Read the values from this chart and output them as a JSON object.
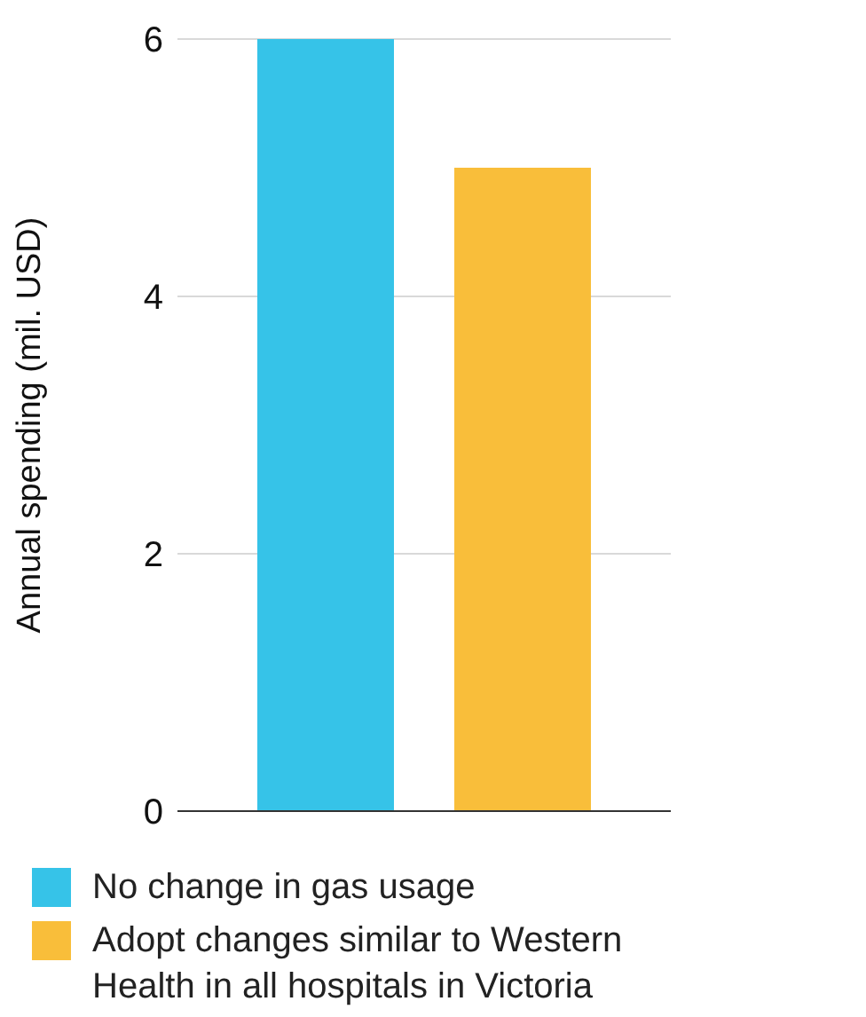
{
  "chart_data": {
    "type": "bar",
    "ylabel": "Annual spending (mil. USD)",
    "categories": [
      null
    ],
    "series": [
      {
        "name": "No change in gas usage",
        "color": "#36c3e8",
        "values": [
          6
        ]
      },
      {
        "name": "Adopt changes similar to Western Health in all hospitals in Victoria",
        "color": "#f9be3a",
        "values": [
          5
        ]
      }
    ],
    "ylim": [
      0,
      6
    ],
    "yticks": [
      0,
      2,
      4,
      6
    ],
    "grid": "y",
    "legend": "bottom"
  }
}
